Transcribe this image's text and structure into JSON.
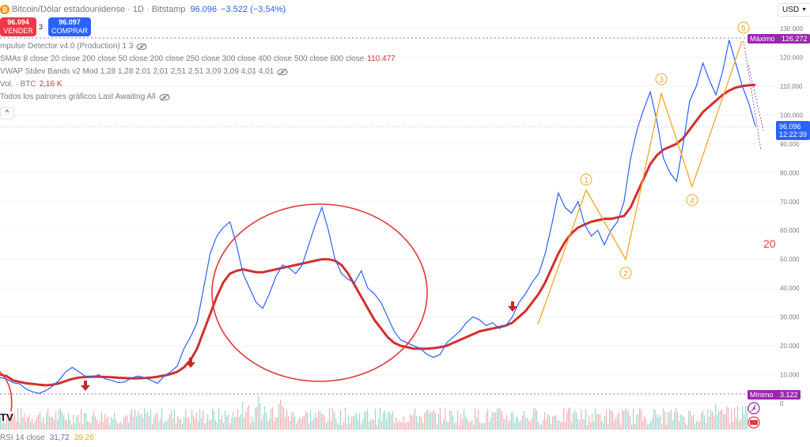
{
  "header": {
    "symbol": "Bitcoin/Dólar estadounidense · 1D · Bitstamp",
    "price": "96.096",
    "change": "−3.522 (−3,54%)",
    "currency": "USD"
  },
  "trade": {
    "sell_price": "96.094",
    "sell_label": "VENDER",
    "spread": "3",
    "buy_price": "96.097",
    "buy_label": "COMPRAR"
  },
  "indicators": [
    {
      "name": "mpulse Detector v4.0 (Production) 1 3",
      "value": ""
    },
    {
      "name": "SMAs 8 close 20 close 200 close 50 close 200 close 250 close 300 close 400 close 500 close 600 close",
      "value": "110.477"
    },
    {
      "name": "VWAP Stdev Bands v2 Mod 1,28 1,28 2,01 2,01 2,51 2,51 3,09 3,09 4,01 4,01",
      "value": ""
    },
    {
      "name": "Vol. · BTC",
      "value": "2,16 K"
    },
    {
      "name": "Todos los patrones gráficos Last Awaiting All",
      "value": ""
    }
  ],
  "collapse_label": "^",
  "price_axis": [
    "130.000",
    "120.000",
    "110.000",
    "100.000",
    "90.000",
    "80.000",
    "70.000",
    "60.000",
    "50.000",
    "40.000",
    "30.000",
    "20.000",
    "10.000",
    "0"
  ],
  "tags": {
    "max_label": "Máximo",
    "max_value": "126.272",
    "last_price": "96.096",
    "countdown": "12:22:39",
    "min_label": "Mínimo",
    "min_value": "3.122"
  },
  "wave_labels": [
    "1",
    "2",
    "3",
    "4",
    "5"
  ],
  "annotation": "20",
  "rsi": {
    "label": "RSI 14 close",
    "v1": "31,72",
    "v2": "39,26"
  },
  "tv_logo": "TV",
  "colors": {
    "price": "#2962ff",
    "sma": "#d32f2f",
    "wave": "#f5a623",
    "ellipse": "#e53935",
    "sell": "#f23645",
    "buy": "#2962ff",
    "max": "#9c27b0"
  },
  "chart_data": {
    "type": "line",
    "ylim": [
      0,
      130000
    ],
    "series": [
      {
        "name": "Bitcoin/Dólar estadounidense",
        "values": [
          9000,
          8500,
          7200,
          6800,
          5000,
          4000,
          3500,
          4500,
          6000,
          8000,
          11000,
          12500,
          11000,
          9500,
          9000,
          10000,
          8500,
          8000,
          7200,
          7500,
          8800,
          9500,
          9000,
          8000,
          7000,
          9500,
          11000,
          13000,
          19000,
          23000,
          28000,
          40000,
          52000,
          58000,
          61000,
          63000,
          55000,
          45000,
          40000,
          35000,
          33000,
          38000,
          44000,
          48000,
          47000,
          45000,
          48000,
          55000,
          62000,
          68000,
          60000,
          50000,
          45000,
          43000,
          42000,
          46000,
          40000,
          38000,
          35000,
          30000,
          25000,
          22000,
          21000,
          20000,
          19000,
          17000,
          16000,
          17000,
          21000,
          23000,
          25000,
          28000,
          30000,
          29000,
          27000,
          28000,
          26000,
          27000,
          30000,
          35000,
          38000,
          42000,
          45000,
          52000,
          62000,
          73000,
          68000,
          66000,
          70000,
          62000,
          58000,
          60000,
          55000,
          60000,
          63000,
          70000,
          85000,
          95000,
          102000,
          108000,
          98000,
          85000,
          80000,
          77000,
          90000,
          105000,
          110000,
          118000,
          112000,
          107000,
          115000,
          126000,
          118000,
          110000,
          104000,
          96096
        ]
      },
      {
        "name": "SMA",
        "values": [
          10000,
          9500,
          8000,
          7500,
          7000,
          6800,
          6500,
          6300,
          6500,
          7000,
          7800,
          8500,
          9000,
          9200,
          9300,
          9300,
          9200,
          9100,
          8900,
          8800,
          8700,
          8700,
          8800,
          9000,
          9300,
          9700,
          10200,
          11000,
          12500,
          15000,
          19000,
          25000,
          31000,
          37000,
          42000,
          45000,
          46000,
          46500,
          46000,
          45500,
          45500,
          46000,
          46500,
          47000,
          47500,
          48000,
          48500,
          49000,
          49500,
          50000,
          50000,
          49500,
          48000,
          45000,
          41000,
          37000,
          33000,
          29000,
          26000,
          23000,
          21000,
          20000,
          19500,
          19000,
          19000,
          19000,
          19200,
          19500,
          20000,
          21000,
          22000,
          23000,
          24000,
          25000,
          25500,
          26000,
          26500,
          27000,
          28000,
          30000,
          32000,
          35000,
          38000,
          42000,
          47000,
          52000,
          56000,
          59000,
          61000,
          62000,
          63000,
          63500,
          64000,
          64000,
          64500,
          65000,
          68000,
          73000,
          78000,
          83000,
          86000,
          88000,
          89000,
          90000,
          92000,
          95000,
          98000,
          101000,
          103000,
          105000,
          107000,
          108500,
          109500,
          110000,
          110300,
          110477
        ]
      }
    ]
  }
}
